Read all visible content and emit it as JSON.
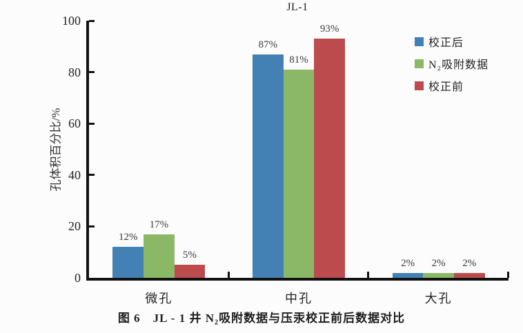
{
  "figure": {
    "title": "JL-1",
    "caption": "图 6　JL - 1 井 N₂吸附数据与压汞校正前后数据对比"
  },
  "chart_data": {
    "type": "bar",
    "title": "JL-1",
    "categories": [
      "微孔",
      "中孔",
      "大孔"
    ],
    "series": [
      {
        "name": "校正后",
        "color": "#4381B4",
        "values": [
          12,
          87,
          2
        ]
      },
      {
        "name": "N₂吸附数据",
        "color": "#8AB866",
        "values": [
          17,
          81,
          2
        ]
      },
      {
        "name": "校正前",
        "color": "#BC4B4E",
        "values": [
          5,
          93,
          2
        ]
      }
    ],
    "value_labels": [
      [
        "12%",
        "87%",
        "2%"
      ],
      [
        "17%",
        "81%",
        "2%"
      ],
      [
        "5%",
        "93%",
        "2%"
      ]
    ],
    "xlabel": "",
    "ylabel": "孔体积百分比/%",
    "ylim": [
      0,
      100
    ],
    "yticks": [
      0,
      20,
      40,
      60,
      80,
      100
    ],
    "grid": false,
    "legend_position": "top-right",
    "axis_color": "#111111"
  }
}
